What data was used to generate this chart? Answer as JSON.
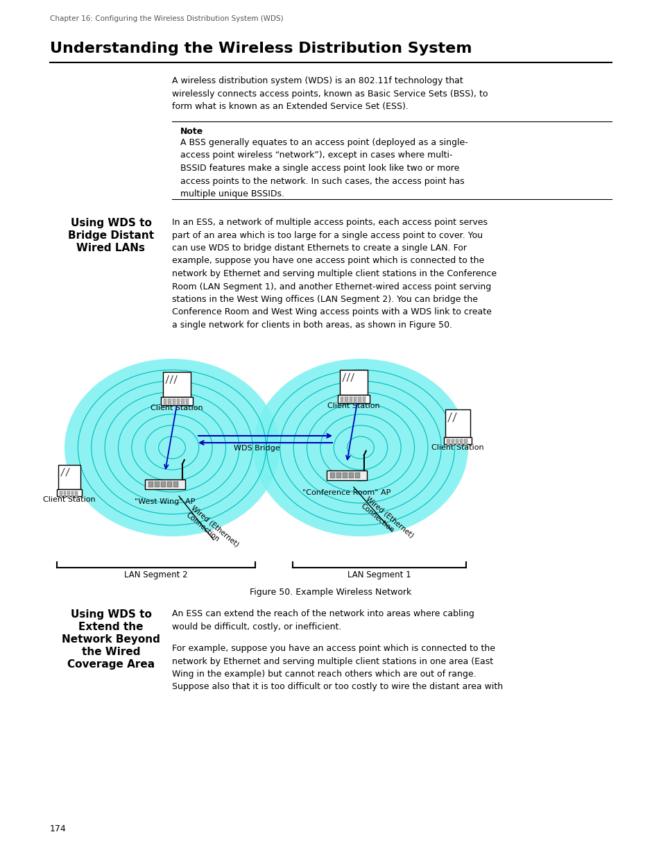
{
  "page_header": "Chapter 16: Configuring the Wireless Distribution System (WDS)",
  "title": "Understanding the Wireless Distribution System",
  "body_text_1": "A wireless distribution system (WDS) is an 802.11f technology that\nwirelessly connects access points, known as Basic Service Sets (BSS), to\nform what is known as an Extended Service Set (ESS).",
  "note_label": "Note",
  "note_text": "A BSS generally equates to an access point (deployed as a single-\naccess point wireless “network”), except in cases where multi-\nBSSID features make a single access point look like two or more\naccess points to the network. In such cases, the access point has\nmultiple unique BSSIDs.",
  "s1h1": "Using WDS to",
  "s1h2": "Bridge Distant",
  "s1h3": "Wired LANs",
  "s1_body": "In an ESS, a network of multiple access points, each access point serves\npart of an area which is too large for a single access point to cover. You\ncan use WDS to bridge distant Ethernets to create a single LAN. For\nexample, suppose you have one access point which is connected to the\nnetwork by Ethernet and serving multiple client stations in the Conference\nRoom (LAN Segment 1), and another Ethernet-wired access point serving\nstations in the West Wing offices (LAN Segment 2). You can bridge the\nConference Room and West Wing access points with a WDS link to create\na single network for clients in both areas, as shown in Figure 50.",
  "figure_caption": "Figure 50. Example Wireless Network",
  "s2h1": "Using WDS to",
  "s2h2": "Extend the",
  "s2h3": "Network Beyond",
  "s2h4": "the Wired",
  "s2h5": "Coverage Area",
  "s2_body1": "An ESS can extend the reach of the network into areas where cabling\nwould be difficult, costly, or inefficient.",
  "s2_body2": "For example, suppose you have an access point which is connected to the\nnetwork by Ethernet and serving multiple client stations in one area (East\nWing in the example) but cannot reach others which are out of range.\nSuppose also that it is too difficult or too costly to wire the distant area with",
  "page_number": "174",
  "bg_color": "#ffffff",
  "text_color": "#000000",
  "cyan_fill": "#7af0f0",
  "cyan_edge": "#00bbbb",
  "blue_arrow": "#0000bb"
}
